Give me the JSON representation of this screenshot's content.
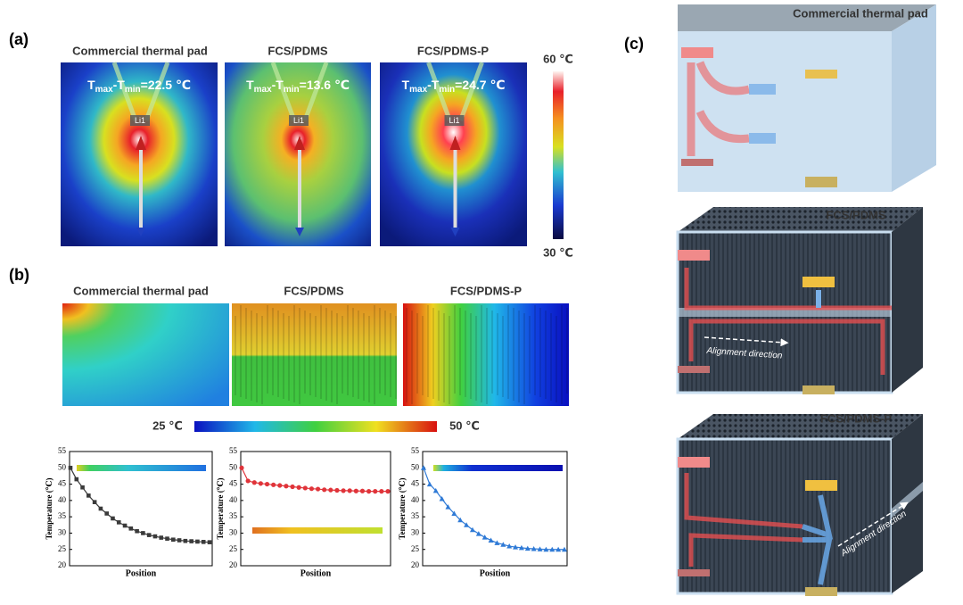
{
  "panel_labels": [
    "(a)",
    "(b)",
    "(c)"
  ],
  "panel_a": {
    "titles": [
      "Commercial thermal pad",
      "FCS/PDMS",
      "FCS/PDMS-P"
    ],
    "delta_prefix": [
      "T",
      "max",
      "-T",
      "min",
      "="
    ],
    "delta_values": [
      "22.5 ℃",
      "13.6 ℃",
      "24.7 ℃"
    ],
    "probe_label": "Li1",
    "colorbar_max": "60 ℃",
    "colorbar_min": "30 ℃"
  },
  "panel_b": {
    "titles": [
      "Commercial thermal pad",
      "FCS/PDMS",
      "FCS/PDMS-P"
    ],
    "colorbar_min": "25 ℃",
    "colorbar_max": "50 ℃"
  },
  "chart_data": [
    {
      "type": "line",
      "x_label": "Position",
      "y_label": "Temperature (℃)",
      "ylim": [
        20,
        55
      ],
      "yticks": [
        20,
        25,
        30,
        35,
        40,
        45,
        50,
        55
      ],
      "series": [
        {
          "color": "#3a3a3a",
          "marker": "square",
          "values": [
            50,
            46.5,
            44,
            41.5,
            39.5,
            37.5,
            36,
            34.5,
            33.3,
            32.3,
            31.4,
            30.6,
            30,
            29.4,
            29,
            28.6,
            28.3,
            28,
            27.8,
            27.6,
            27.5,
            27.4,
            27.3,
            27.2
          ]
        }
      ]
    },
    {
      "type": "line",
      "x_label": "Position",
      "y_label": "Temperature (℃)",
      "ylim": [
        20,
        55
      ],
      "yticks": [
        20,
        25,
        30,
        35,
        40,
        45,
        50,
        55
      ],
      "series": [
        {
          "color": "#e0343a",
          "marker": "circle",
          "values": [
            50,
            46,
            45.5,
            45.2,
            45,
            44.8,
            44.6,
            44.4,
            44.2,
            44,
            43.8,
            43.6,
            43.5,
            43.3,
            43.2,
            43.1,
            43,
            43,
            42.9,
            42.9,
            42.8,
            42.8,
            42.8,
            42.8
          ]
        }
      ]
    },
    {
      "type": "line",
      "x_label": "Position",
      "y_label": "Temperature (℃)",
      "ylim": [
        20,
        55
      ],
      "yticks": [
        20,
        25,
        30,
        35,
        40,
        45,
        50,
        55
      ],
      "series": [
        {
          "color": "#2f7ad6",
          "marker": "triangle",
          "values": [
            50,
            45,
            43,
            40.5,
            38,
            36,
            34,
            32.5,
            31,
            29.8,
            28.7,
            27.8,
            27,
            26.5,
            26,
            25.7,
            25.5,
            25.3,
            25.2,
            25.1,
            25,
            25,
            25,
            25
          ]
        }
      ]
    }
  ],
  "panel_c": {
    "titles": [
      "Commercial thermal pad",
      "FCS/PDMS",
      "FCS/PDMS-P"
    ],
    "alignment_label": "Alignment direction"
  }
}
